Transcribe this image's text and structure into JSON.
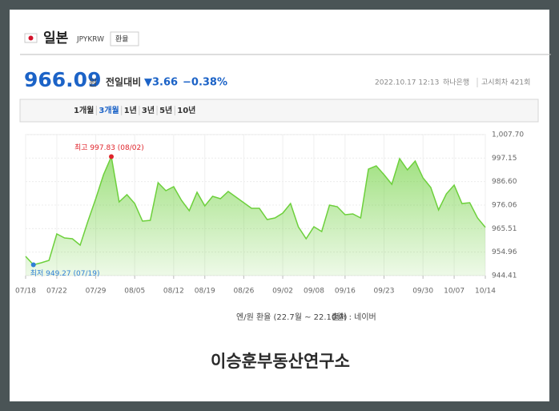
{
  "header": {
    "title": "일본",
    "code": "JPYKRW",
    "badge": "환율"
  },
  "quote": {
    "price": "966.09",
    "unit": "원",
    "compare_label": "전일대비",
    "change": "▼3.66",
    "change_rate": "−0.38%",
    "datetime": "2022.10.17 12:13",
    "bank": "하나은행",
    "round": "고시회차 421회"
  },
  "tabs": [
    "1개월",
    "3개월",
    "1년",
    "3년",
    "5년",
    "10년"
  ],
  "selected_tab": 1,
  "chart_data": {
    "type": "area",
    "color": "#6dd03c",
    "grid": true,
    "categories": [
      "07/18",
      null,
      null,
      null,
      "07/22",
      null,
      null,
      null,
      null,
      "07/29",
      null,
      null,
      null,
      null,
      "08/05",
      null,
      null,
      null,
      null,
      "08/12",
      null,
      null,
      null,
      "08/19",
      null,
      null,
      null,
      null,
      "08/26",
      null,
      null,
      null,
      null,
      "09/02",
      null,
      null,
      null,
      "09/08",
      null,
      null,
      null,
      "09/16",
      null,
      null,
      null,
      null,
      "09/23",
      null,
      null,
      null,
      null,
      "09/30",
      null,
      null,
      null,
      "10/07",
      null,
      null,
      null,
      "10/14"
    ],
    "values": [
      953.04,
      949.27,
      950.16,
      951.24,
      963.11,
      961.31,
      960.95,
      958.07,
      968.86,
      978.93,
      989.72,
      997.83,
      977.49,
      980.73,
      976.77,
      968.86,
      969.22,
      986.12,
      982.53,
      984.32,
      978.21,
      973.54,
      981.81,
      975.69,
      980.01,
      978.93,
      982.17,
      979.65,
      977.13,
      974.61,
      974.61,
      969.58,
      970.3,
      972.46,
      976.77,
      966.34,
      960.95,
      966.34,
      964.19,
      976.05,
      975.33,
      971.74,
      972.1,
      970.3,
      992.23,
      993.67,
      989.72,
      985.4,
      996.91,
      991.88,
      995.83,
      988.28,
      983.96,
      973.9,
      981.09,
      985.04,
      976.77,
      977.13,
      970.3,
      966.09
    ],
    "ylim": [
      944.41,
      1007.7
    ],
    "yticks": [
      944.41,
      954.96,
      965.51,
      976.06,
      {
        "value": 986.6,
        "label": "986.60"
      },
      997.15,
      {
        "value": 1007.7,
        "label": "1,007.70"
      }
    ],
    "annotations": [
      {
        "text": "최고 997.83 (08/02)",
        "color": "#e0252c"
      },
      {
        "text": "최저 949.27 (07/19)",
        "color": "#2f7fd6"
      }
    ],
    "caption": "엔/원 환율 (22.7월 ~ 22.10월)",
    "source": "출처 : 네이버"
  },
  "footer": "이승훈부동산연구소"
}
